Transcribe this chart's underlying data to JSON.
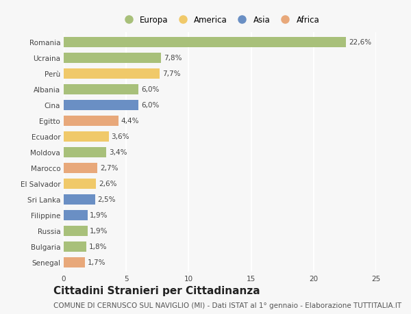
{
  "countries": [
    "Romania",
    "Ucraina",
    "Perù",
    "Albania",
    "Cina",
    "Egitto",
    "Ecuador",
    "Moldova",
    "Marocco",
    "El Salvador",
    "Sri Lanka",
    "Filippine",
    "Russia",
    "Bulgaria",
    "Senegal"
  ],
  "values": [
    22.6,
    7.8,
    7.7,
    6.0,
    6.0,
    4.4,
    3.6,
    3.4,
    2.7,
    2.6,
    2.5,
    1.9,
    1.9,
    1.8,
    1.7
  ],
  "labels": [
    "22,6%",
    "7,8%",
    "7,7%",
    "6,0%",
    "6,0%",
    "4,4%",
    "3,6%",
    "3,4%",
    "2,7%",
    "2,6%",
    "2,5%",
    "1,9%",
    "1,9%",
    "1,8%",
    "1,7%"
  ],
  "continents": [
    "Europa",
    "Europa",
    "America",
    "Europa",
    "Asia",
    "Africa",
    "America",
    "Europa",
    "Africa",
    "America",
    "Asia",
    "Asia",
    "Europa",
    "Europa",
    "Africa"
  ],
  "continent_colors": {
    "Europa": "#a8c07a",
    "America": "#f0c96a",
    "Asia": "#6a8fc4",
    "Africa": "#e8a87a"
  },
  "legend_order": [
    "Europa",
    "America",
    "Asia",
    "Africa"
  ],
  "bar_height": 0.65,
  "xlim": [
    0,
    25
  ],
  "xticks": [
    0,
    5,
    10,
    15,
    20,
    25
  ],
  "background_color": "#f7f7f7",
  "plot_bg_color": "#f7f7f7",
  "grid_color": "#ffffff",
  "title": "Cittadini Stranieri per Cittadinanza",
  "subtitle": "COMUNE DI CERNUSCO SUL NAVIGLIO (MI) - Dati ISTAT al 1° gennaio - Elaborazione TUTTITALIA.IT",
  "title_fontsize": 11,
  "subtitle_fontsize": 7.5,
  "label_fontsize": 7.5,
  "tick_fontsize": 7.5,
  "legend_fontsize": 8.5
}
